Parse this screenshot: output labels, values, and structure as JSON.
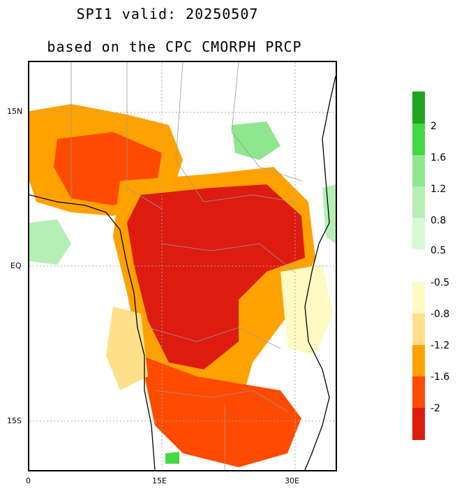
{
  "title": {
    "line1": "SPI1   valid: 20250507",
    "line2": "based on the CPC CMORPH PRCP"
  },
  "map": {
    "lat_labels": [
      "15N",
      "EQ",
      "15S"
    ],
    "lon_labels": [
      "0",
      "15E",
      "30E"
    ],
    "background": "#ffffff",
    "country_border_color": "#999999",
    "coast_color": "#000000"
  },
  "legend_wet": {
    "colors": [
      "#1fa51f",
      "#44d844",
      "#8ee68e",
      "#b5efb5",
      "#d7f8d7",
      "#eefcee"
    ],
    "labels": [
      "2",
      "1.6",
      "1.2",
      "0.8",
      "0.5"
    ]
  },
  "legend_dry": {
    "colors": [
      "#fffac4",
      "#ffe08a",
      "#ffa200",
      "#ff4a00",
      "#dd1b0f"
    ],
    "labels": [
      "-0.5",
      "-0.8",
      "-1.2",
      "-1.6",
      "-2"
    ]
  }
}
